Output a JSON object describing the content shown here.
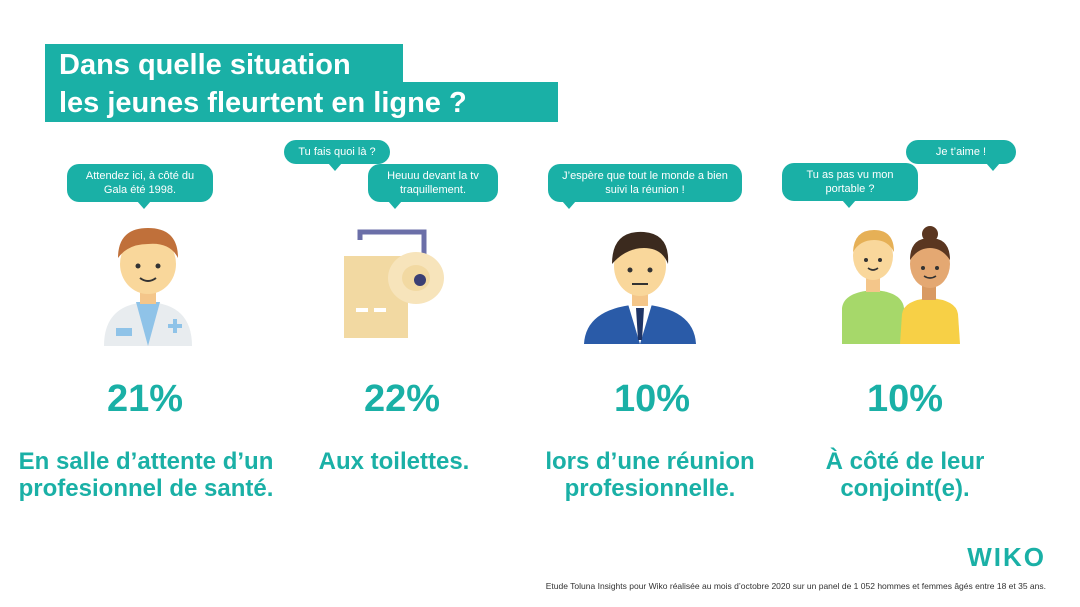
{
  "title": {
    "line1": "Dans quelle situation",
    "line2": "les jeunes fleurtent en ligne ?"
  },
  "columns": [
    {
      "bubbles": [
        "Attendez ici, à côté du Gala été 1998."
      ],
      "percent": "21%",
      "caption": "En salle d’attente d’un profesionnel de santé.",
      "icon": "doctor-icon"
    },
    {
      "bubbles": [
        "Tu fais quoi là ?",
        "Heuuu devant la tv traquillement."
      ],
      "percent": "22%",
      "caption": "Aux toilettes.",
      "icon": "toilet-paper-icon"
    },
    {
      "bubbles": [
        "J’espère que tout le monde a bien suivi la réunion !"
      ],
      "percent": "10%",
      "caption": "lors d’une réunion profesionnelle.",
      "icon": "businessman-icon"
    },
    {
      "bubbles": [
        "Tu as pas vu mon portable ?",
        "Je t’aime !"
      ],
      "percent": "10%",
      "caption": "À côté de leur conjoint(e).",
      "icon": "couple-icon"
    }
  ],
  "brand": "WIKO",
  "footnote": "Etude Toluna Insights pour Wiko réalisée au mois d’octobre 2020 sur un panel de 1 052 hommes et femmes âgés entre 18 et 35 ans.",
  "colors": {
    "accent": "#1ab0a6"
  }
}
